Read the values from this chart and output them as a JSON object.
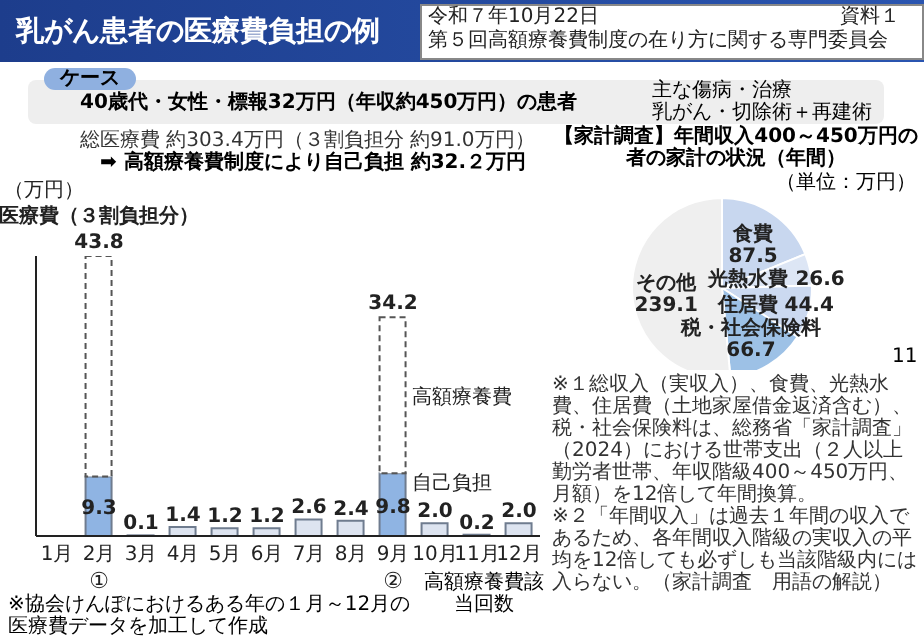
{
  "chart_data": [
    {
      "type": "bar",
      "title": "乳がん患者の医療費負担の例",
      "ylabel": "（万円）",
      "stacked": true,
      "tick_labels": "x",
      "categories": [
        "1月",
        "2月",
        "3月",
        "4月",
        "5月",
        "6月",
        "7月",
        "8月",
        "9月",
        "10月",
        "11月",
        "12月"
      ],
      "series": [
        {
          "name": "自己負担",
          "colors": [
            "#dde4f0",
            "#8fb4e3",
            "#dde4f0",
            "#dde4f0",
            "#dde4f0",
            "#dde4f0",
            "#dde4f0",
            "#dde4f0",
            "#8fb4e3",
            "#dde4f0",
            "#dde4f0",
            "#dde4f0"
          ],
          "values": [
            null,
            9.3,
            0.1,
            1.4,
            1.2,
            1.2,
            2.6,
            2.4,
            9.8,
            2.0,
            0.2,
            2.0
          ],
          "value_labels": [
            null,
            "9.3",
            "0.1",
            "1.4",
            "1.2",
            "1.2",
            "2.6",
            "2.4",
            "9.8",
            "2.0",
            "0.2",
            "2.0"
          ]
        },
        {
          "name": "高額療養費",
          "color": "#ffffff",
          "line_style": "dashed",
          "values": [
            null,
            34.5,
            null,
            null,
            null,
            null,
            null,
            null,
            24.4,
            null,
            null,
            null
          ]
        }
      ],
      "totals": [
        null,
        "43.8",
        null,
        null,
        null,
        null,
        null,
        null,
        "34.2",
        null,
        null,
        null
      ],
      "annotations": [
        "令和７年10月22日",
        "第５回高額療養費制度の在り方に関する専門委員会",
        "資料１",
        "ケース",
        "40歳代・女性・標報32万円（年収約450万円）の患者",
        "主な傷病・治療",
        "乳がん・切除術＋再建術",
        "総医療費 約303.4万円（３割負担分 約91.0万円）",
        "➡ 高額療養費制度により自己負担 約32.２万円",
        {
          "text": "医療費（３割負担分）",
          "x": "2月",
          "y": 43.8
        },
        "①",
        "②",
        "高額療養費該当回数",
        "※協会けんぽにおけるある年の１月～12月の医療費データを加工して作成"
      ]
    },
    {
      "type": "pie",
      "title": "【家計調査】年間収入400～450万円の者の家計の状況（年間）",
      "subtitle": "（単位：万円）",
      "data_labels": true,
      "categories": [
        "食費",
        "光熱水費",
        "住居費",
        "税・社会保険料",
        "その他"
      ],
      "values": [
        87.5,
        26.6,
        44.4,
        66.7,
        239.1
      ],
      "colors": [
        "#c8d7ef",
        "#dde6f5",
        "#cbd9f0",
        "#9dc1e6",
        "#efefef"
      ],
      "annotations": [
        "※１総収入（実収入）、食費、光熱水費、住居費（土地家屋借金返済含む）、税・社会保険料は、総務省「家計調査」（2024）における世帯支出（２人以上勤労者世帯、年収階級400～450万円、月額）を12倍して年間換算。",
        "※２「年間収入」は過去１年間の収入であるため、各年間収入階級の実収入の平均を12倍しても必ずしも当該階級内には入らない。（家計調査　用語の解説）",
        "11"
      ]
    }
  ]
}
